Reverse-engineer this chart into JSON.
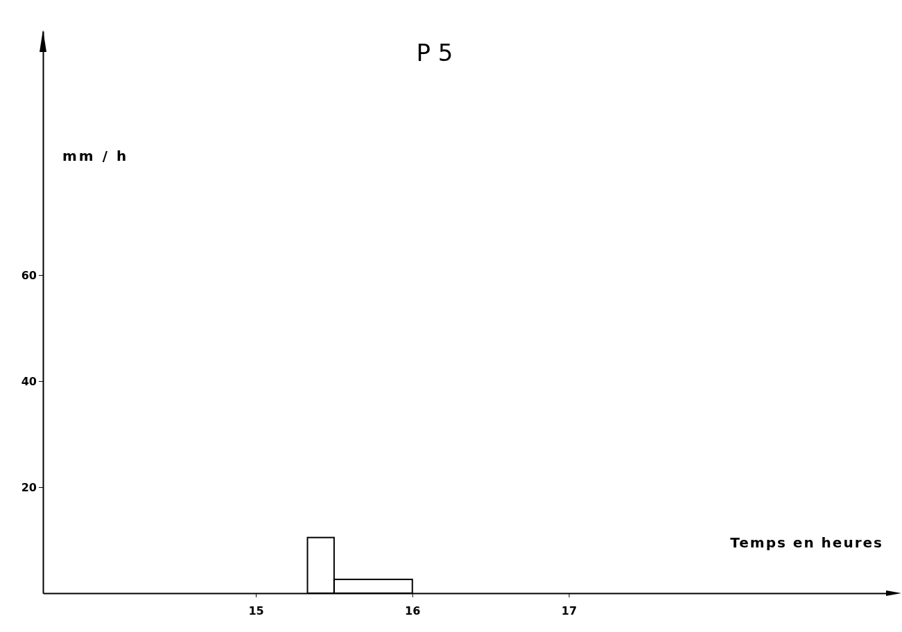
{
  "chart_data": {
    "type": "histogram",
    "title": "P 5",
    "ylabel": "mm / h",
    "xlabel": "Temps en heures",
    "bins": [
      15.33,
      15.5,
      16
    ],
    "values": [
      10.5,
      2.6
    ],
    "color": "#000000",
    "xlim": [
      13.64,
      19.08
    ],
    "ylim": [
      0,
      106
    ],
    "xticks": [
      15,
      16,
      17
    ],
    "yticks": [
      20,
      40,
      60
    ],
    "grid": false
  }
}
